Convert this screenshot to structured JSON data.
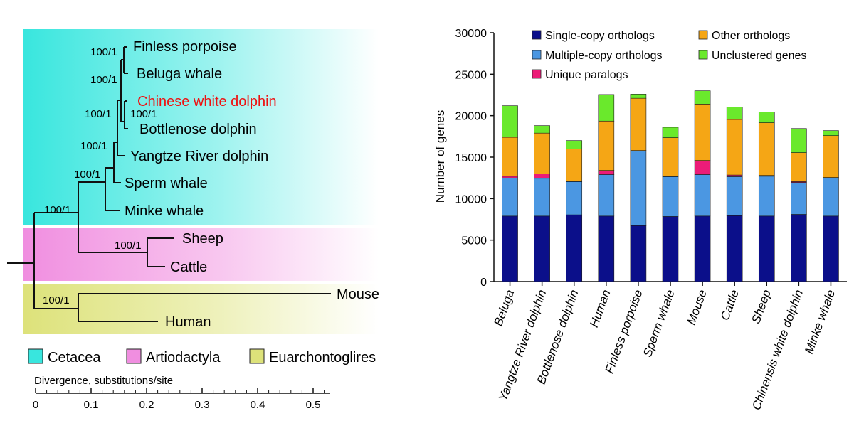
{
  "tree": {
    "taxa": {
      "finless": "Finless porpoise",
      "beluga": "Beluga whale",
      "cwd": "Chinese white dolphin",
      "bottlenose": "Bottlenose dolphin",
      "yangtze": "Yangtze River dolphin",
      "sperm": "Sperm whale",
      "minke": "Minke whale",
      "sheep": "Sheep",
      "cattle": "Cattle",
      "mouse": "Mouse",
      "human": "Human"
    },
    "support": {
      "n_finless_beluga": "100/1",
      "n_beluga_cwd": "100/1",
      "n_cwd_bottlenose": "100/1",
      "n_upto_yangtze": "100/1",
      "n_upto_sperm": "100/1",
      "n_cetacea": "100/1",
      "n_artio": "100/1",
      "n_euarch": "100/1"
    },
    "legend": {
      "cetacea": "Cetacea",
      "artiodactyla": "Artiodactyla",
      "euarchontoglires": "Euarchontoglires"
    },
    "scale": {
      "title": "Divergence, substitutions/site",
      "ticks": [
        "0",
        "0.1",
        "0.2",
        "0.3",
        "0.4",
        "0.5"
      ],
      "tick_values": [
        0,
        0.1,
        0.2,
        0.3,
        0.4,
        0.5
      ]
    },
    "colors": {
      "cetacea": "#38e6de",
      "artiodactyla": "#f08ee0",
      "euarchontoglires": "#dde27a",
      "highlight": "#ee1111"
    }
  },
  "chart_data": {
    "type": "bar",
    "stacked": true,
    "ylabel": "Number of genes",
    "xlabel": "",
    "ylim": [
      0,
      30000
    ],
    "yticks": [
      0,
      5000,
      10000,
      15000,
      20000,
      25000,
      30000
    ],
    "categories": [
      "Beluga",
      "Yangtze River dolphin",
      "Bottlenose dolphin",
      "Human",
      "Finless porpoise",
      "Sperm whale",
      "Mouse",
      "Cattle",
      "Sheep",
      "Chinensis white dolphin",
      "Minke whale"
    ],
    "series": [
      {
        "name": "Single-copy orthologs",
        "color": "#0b0f8a",
        "values": [
          7900,
          7900,
          8050,
          7900,
          6750,
          7850,
          7900,
          7950,
          7900,
          8100,
          7900
        ]
      },
      {
        "name": "Multiple-copy orthologs",
        "color": "#4b97e2",
        "values": [
          4600,
          4550,
          4000,
          5000,
          9050,
          4800,
          5000,
          4700,
          4800,
          3850,
          4600
        ]
      },
      {
        "name": "Unique paralogs",
        "color": "#ec1c78",
        "values": [
          200,
          550,
          50,
          500,
          0,
          50,
          1700,
          200,
          100,
          100,
          50
        ]
      },
      {
        "name": "Other orthologs",
        "color": "#f5a615",
        "values": [
          4700,
          4900,
          3900,
          5950,
          6300,
          4650,
          6800,
          6700,
          6350,
          3500,
          5050
        ]
      },
      {
        "name": "Unclustered genes",
        "color": "#6ae92c",
        "values": [
          3800,
          900,
          1000,
          3200,
          500,
          1250,
          1600,
          1500,
          1300,
          2900,
          600
        ]
      }
    ],
    "legend_placement": "top"
  }
}
